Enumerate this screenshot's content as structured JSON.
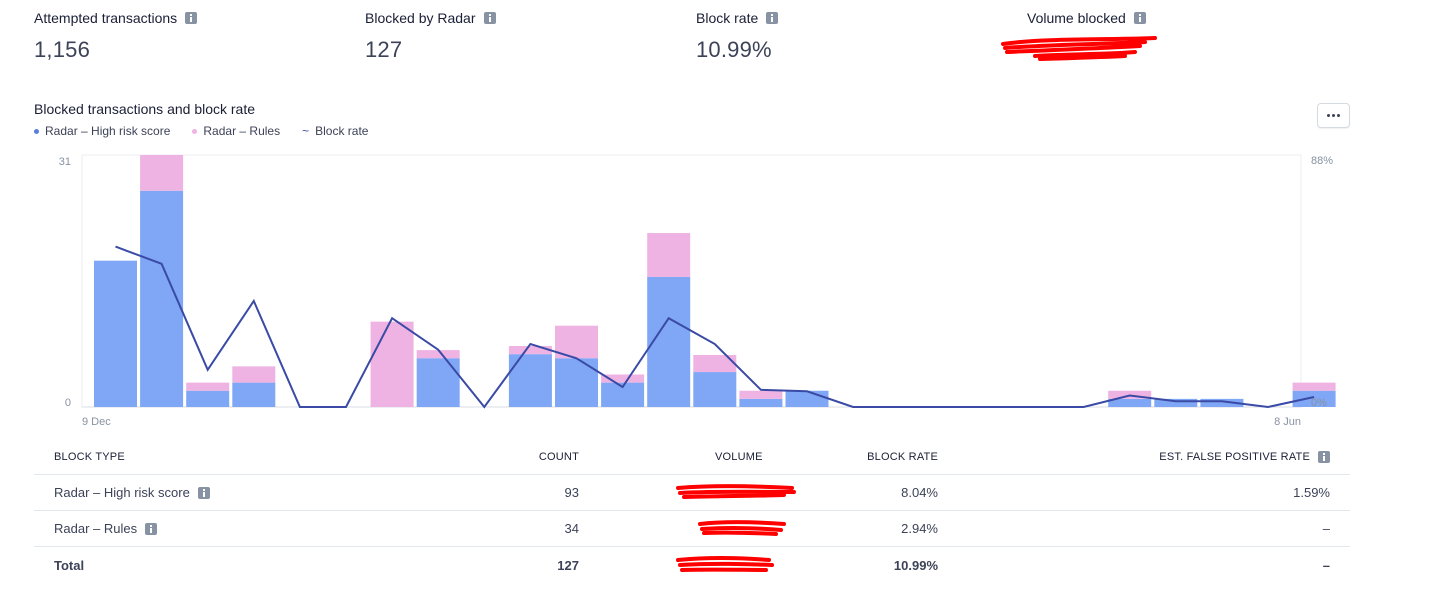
{
  "metrics": [
    {
      "label": "Attempted transactions",
      "value": "1,156"
    },
    {
      "label": "Blocked by Radar",
      "value": "127"
    },
    {
      "label": "Block rate",
      "value": "10.99%"
    },
    {
      "label": "Volume blocked",
      "value": ""
    }
  ],
  "chart_section": {
    "title": "Blocked transactions and block rate",
    "legend": [
      {
        "label": "Radar – High risk score",
        "color": "#7fa7f5"
      },
      {
        "label": "Radar – Rules",
        "color": "#eeb3e3"
      },
      {
        "label": "Block rate",
        "color": "#3a4aa5"
      }
    ]
  },
  "chart_data": {
    "type": "bar",
    "stacked": true,
    "x_start_label": "9 Dec",
    "x_end_label": "8 Jun",
    "ylim": [
      0,
      31
    ],
    "y2lim": [
      0,
      88
    ],
    "y_ticks": [
      "0",
      "31"
    ],
    "y2_ticks": [
      "0%",
      "88%"
    ],
    "series": [
      {
        "name": "Radar – High risk score",
        "color": "#7fa7f5",
        "values": [
          18,
          26.6,
          2,
          3,
          0,
          0,
          0,
          6,
          0,
          6.5,
          6,
          3,
          16,
          4.3,
          1,
          2,
          0,
          0,
          0,
          0,
          0,
          0,
          1,
          1,
          1,
          0,
          2
        ]
      },
      {
        "name": "Radar – Rules",
        "color": "#eeb3e3",
        "values": [
          0,
          4.4,
          1,
          2,
          0,
          0,
          10.5,
          1,
          0,
          1,
          4,
          1,
          5.4,
          2.1,
          1,
          0,
          0,
          0,
          0,
          0,
          0,
          0,
          1,
          0,
          0,
          0,
          1
        ]
      }
    ],
    "line": {
      "name": "Block rate",
      "color": "#3a4aa5",
      "values": [
        56,
        50,
        13,
        37,
        0,
        0,
        31,
        20,
        0,
        22,
        17,
        7,
        31,
        22,
        6,
        5.5,
        0,
        0,
        0,
        0,
        0,
        0,
        4,
        2,
        2,
        0,
        3.5
      ]
    }
  },
  "table": {
    "headers": {
      "type": "BLOCK TYPE",
      "count": "COUNT",
      "volume": "VOLUME",
      "rate": "BLOCK RATE",
      "fpr": "EST. FALSE POSITIVE RATE"
    },
    "rows": [
      {
        "type": "Radar – High risk score",
        "count": "93",
        "rate": "8.04%",
        "fpr": "1.59%"
      },
      {
        "type": "Radar – Rules",
        "count": "34",
        "rate": "2.94%",
        "fpr": "–"
      }
    ],
    "total": {
      "type": "Total",
      "count": "127",
      "rate": "10.99%",
      "fpr": "–"
    }
  }
}
